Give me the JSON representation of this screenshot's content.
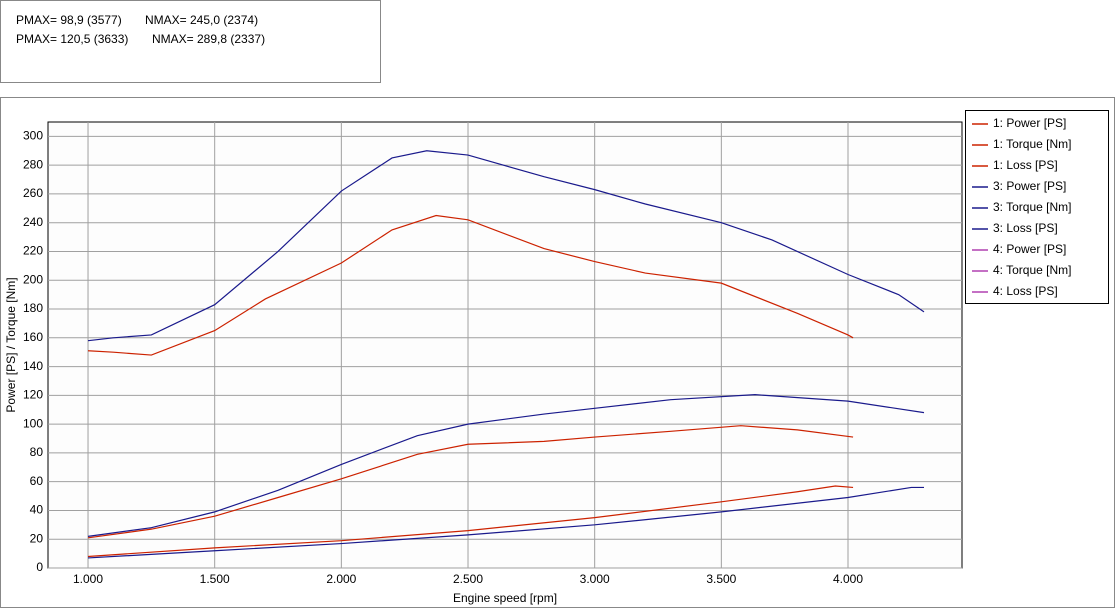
{
  "header": {
    "lines": [
      [
        "PMAX= 98,9 (3577)",
        "NMAX= 245,0 (2374)"
      ],
      [
        "PMAX= 120,5 (3633)",
        "NMAX= 289,8 (2337)"
      ]
    ]
  },
  "chart_data": {
    "type": "line",
    "ylabel": "Power [PS] / Torque [Nm]",
    "xlabel": "Engine speed [rpm]",
    "xlim": [
      842,
      4450
    ],
    "ylim": [
      0,
      310
    ],
    "xticks": [
      {
        "value": 1000,
        "label": "1.000"
      },
      {
        "value": 1500,
        "label": "1.500"
      },
      {
        "value": 2000,
        "label": "2.000"
      },
      {
        "value": 2500,
        "label": "2.500"
      },
      {
        "value": 3000,
        "label": "3.000"
      },
      {
        "value": 3500,
        "label": "3.500"
      },
      {
        "value": 4000,
        "label": "4.000"
      }
    ],
    "yticks": [
      0,
      20,
      40,
      60,
      80,
      100,
      120,
      140,
      160,
      180,
      200,
      220,
      240,
      260,
      280,
      300
    ],
    "grid": true,
    "series": [
      {
        "name": "1: Power [PS]",
        "color": "#cc2200",
        "x": [
          1000,
          1250,
          1500,
          1750,
          2000,
          2300,
          2500,
          2800,
          3000,
          3300,
          3577,
          3800,
          4020
        ],
        "values": [
          21,
          27,
          36,
          49,
          62,
          79,
          86,
          88,
          91,
          95,
          98.9,
          96,
          91
        ]
      },
      {
        "name": "1: Torque [Nm]",
        "color": "#cc2200",
        "x": [
          1000,
          1100,
          1250,
          1500,
          1700,
          2000,
          2200,
          2374,
          2500,
          2800,
          3000,
          3200,
          3500,
          3800,
          4000,
          4020
        ],
        "values": [
          151,
          150,
          148,
          165,
          187,
          212,
          235,
          245,
          242,
          222,
          213,
          205,
          198,
          177,
          162,
          160
        ]
      },
      {
        "name": "1: Loss [PS]",
        "color": "#cc2200",
        "x": [
          1000,
          1500,
          2000,
          2500,
          3000,
          3500,
          3800,
          3950,
          4020
        ],
        "values": [
          8,
          14,
          19,
          26,
          35,
          46,
          53,
          57,
          56
        ]
      },
      {
        "name": "3: Power [PS]",
        "color": "#1a1a8c",
        "x": [
          1000,
          1250,
          1500,
          1750,
          2000,
          2300,
          2500,
          2800,
          3000,
          3300,
          3633,
          4000,
          4300
        ],
        "values": [
          22,
          28,
          39,
          54,
          72,
          92,
          100,
          107,
          111,
          117,
          120.5,
          116,
          108
        ]
      },
      {
        "name": "3: Torque [Nm]",
        "color": "#1a1a8c",
        "x": [
          1000,
          1100,
          1250,
          1500,
          1750,
          2000,
          2200,
          2337,
          2500,
          2800,
          3000,
          3200,
          3500,
          3700,
          4000,
          4200,
          4300
        ],
        "values": [
          158,
          160,
          162,
          183,
          220,
          262,
          285,
          290,
          287,
          272,
          263,
          253,
          240,
          228,
          204,
          190,
          178
        ]
      },
      {
        "name": "3: Loss [PS]",
        "color": "#1a1a8c",
        "x": [
          1000,
          1500,
          2000,
          2500,
          3000,
          3500,
          4000,
          4250,
          4300
        ],
        "values": [
          7,
          12,
          17,
          23,
          30,
          39,
          49,
          56,
          56
        ]
      },
      {
        "name": "4: Power [PS]",
        "color": "#b040b0",
        "x": [],
        "values": []
      },
      {
        "name": "4: Torque [Nm]",
        "color": "#b040b0",
        "x": [],
        "values": []
      },
      {
        "name": "4: Loss [PS]",
        "color": "#b040b0",
        "x": [],
        "values": []
      }
    ]
  }
}
